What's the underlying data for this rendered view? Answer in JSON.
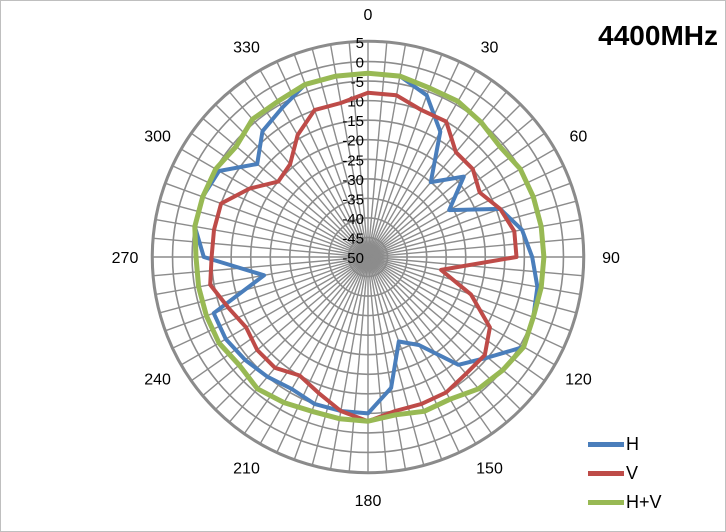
{
  "chart_data": {
    "type": "radar",
    "title": "4400MHz",
    "radial_ticks": [
      "-50",
      "-45",
      "-40",
      "-35",
      "-30",
      "-25",
      "-20",
      "-15",
      "-10",
      "-5",
      "0",
      "5"
    ],
    "rlim": [
      -50,
      5
    ],
    "angular_tick_labels": [
      "0",
      "30",
      "60",
      "90",
      "120",
      "150",
      "180",
      "210",
      "240",
      "270",
      "300",
      "330"
    ],
    "grid": true,
    "legend_position": "bottom-right",
    "angles_deg": [
      0,
      10,
      20,
      30,
      40,
      50,
      60,
      70,
      80,
      90,
      100,
      110,
      120,
      130,
      140,
      150,
      160,
      170,
      180,
      190,
      200,
      210,
      220,
      230,
      240,
      250,
      260,
      270,
      280,
      290,
      300,
      310,
      320,
      330,
      340,
      350
    ],
    "series": [
      {
        "name": "H",
        "color": "#4a7ebb",
        "values": [
          -3,
          -3,
          -6,
          -13,
          -25,
          -18,
          -26,
          -14,
          -10,
          -8,
          -6,
          -5,
          -4,
          -10,
          -14,
          -24,
          -27,
          -16,
          -10,
          -10,
          -10,
          -11,
          -10,
          -9,
          -8,
          -8,
          -23,
          -8,
          -5,
          -5,
          -6,
          -13,
          -8,
          -6,
          -3,
          -3
        ]
      },
      {
        "name": "V",
        "color": "#be4b48",
        "values": [
          -8,
          -8,
          -10,
          -10,
          -15,
          -15,
          -17,
          -14,
          -12,
          -12,
          -31,
          -22,
          -14,
          -11,
          -11,
          -10,
          -10,
          -10,
          -8,
          -10,
          -13,
          -15,
          -13,
          -13,
          -14,
          -12,
          -9,
          -10,
          -10,
          -10,
          -15,
          -20,
          -19,
          -14,
          -10,
          -10
        ]
      },
      {
        "name": "H+V",
        "color": "#98b954",
        "values": [
          -3,
          -3,
          -4,
          -4,
          -5,
          -6,
          -5,
          -5,
          -5,
          -5,
          -5,
          -5,
          -4,
          -5,
          -6,
          -8,
          -8,
          -9,
          -8,
          -8,
          -8,
          -7,
          -6,
          -7,
          -6,
          -6,
          -6,
          -6,
          -5,
          -5,
          -5,
          -6,
          -4,
          -4,
          -3,
          -3
        ]
      }
    ]
  }
}
